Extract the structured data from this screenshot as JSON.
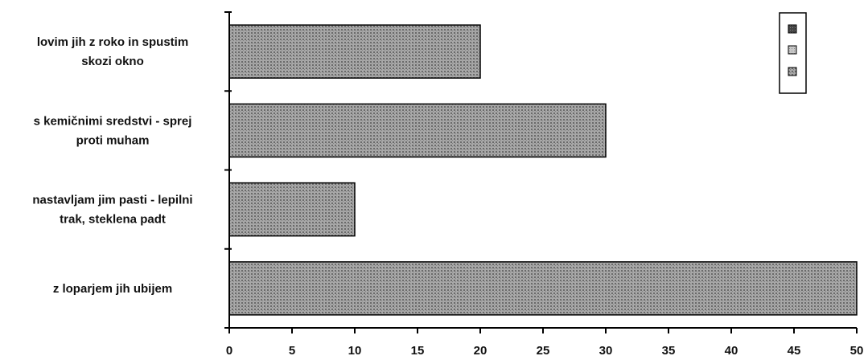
{
  "chart_data": {
    "type": "bar",
    "orientation": "horizontal",
    "categories": [
      [
        "lovim jih z roko in spustim",
        "skozi okno"
      ],
      [
        "s kemičnimi sredstvi - sprej",
        "proti muham"
      ],
      [
        "nastavljam jim pasti - lepilni",
        "trak, steklena padt"
      ],
      [
        "z loparjem jih ubijem"
      ]
    ],
    "values": [
      20,
      30,
      10,
      50
    ],
    "xlim": [
      0,
      50
    ],
    "xticks": [
      "0",
      "5",
      "10",
      "15",
      "20",
      "25",
      "30",
      "35",
      "40",
      "45",
      "50"
    ],
    "grid": false,
    "legend_position": "top-right",
    "colors": {
      "bar_fill": "#9a9a9a",
      "bar_pattern": "#6a6a6a",
      "axis": "#000000",
      "legend_swatches": [
        "#555555",
        "#b0b0b0",
        "#8a8a8a"
      ]
    }
  }
}
